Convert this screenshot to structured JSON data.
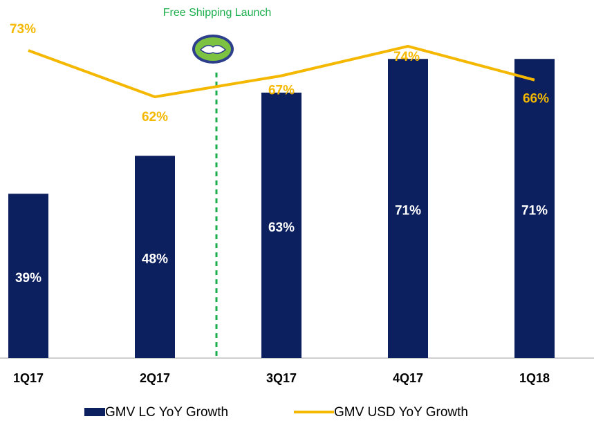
{
  "chart_data": {
    "type": "bar",
    "annotation": "Free Shipping Launch",
    "categories": [
      "1Q17",
      "2Q17",
      "3Q17",
      "4Q17",
      "1Q18"
    ],
    "ylim": [
      0,
      84
    ],
    "series": [
      {
        "name": "GMV LC YoY Growth",
        "type": "bar",
        "color": "#0c1f5f",
        "values": [
          39,
          48,
          63,
          71,
          71
        ],
        "value_labels": [
          "39%",
          "48%",
          "63%",
          "71%",
          "71%"
        ]
      },
      {
        "name": "GMV USD YoY Growth",
        "type": "line",
        "color": "#f5b800",
        "values": [
          73,
          62,
          67,
          74,
          66
        ],
        "value_labels": [
          "73%",
          "62%",
          "67%",
          "74%",
          "66%"
        ]
      }
    ]
  }
}
